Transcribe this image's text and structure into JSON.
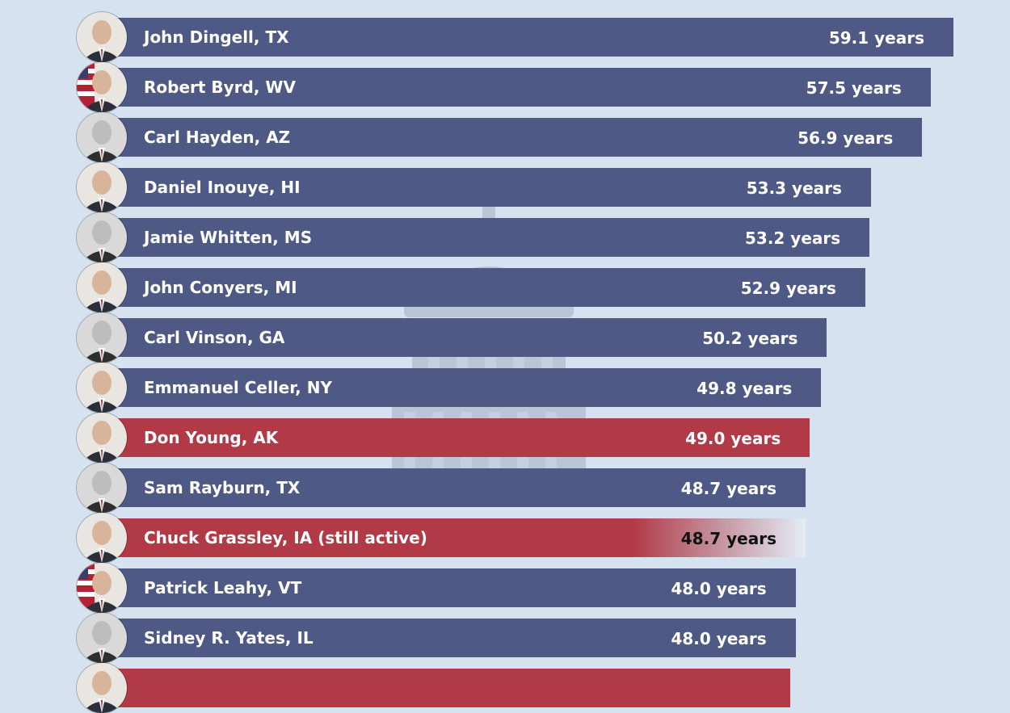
{
  "chart_data": {
    "type": "bar",
    "orientation": "horizontal",
    "unit": "years",
    "xlim": [
      0,
      60
    ],
    "grid": false,
    "legend": "none",
    "colors": {
      "democrat": "#4f5986",
      "republican": "#b23a47",
      "background": "#d6e2ef"
    },
    "bars": [
      {
        "label": "John Dingell, TX",
        "value": 59.1,
        "value_label": "59.1 years",
        "party": "D",
        "portrait": "portrait-color"
      },
      {
        "label": "Robert Byrd, WV",
        "value": 57.5,
        "value_label": "57.5 years",
        "party": "D",
        "portrait": "portrait-flag"
      },
      {
        "label": "Carl Hayden, AZ",
        "value": 56.9,
        "value_label": "56.9 years",
        "party": "D",
        "portrait": "portrait-bw"
      },
      {
        "label": "Daniel Inouye, HI",
        "value": 53.3,
        "value_label": "53.3 years",
        "party": "D",
        "portrait": "portrait-color"
      },
      {
        "label": "Jamie Whitten, MS",
        "value": 53.2,
        "value_label": "53.2 years",
        "party": "D",
        "portrait": "portrait-bw"
      },
      {
        "label": "John Conyers, MI",
        "value": 52.9,
        "value_label": "52.9 years",
        "party": "D",
        "portrait": "portrait-color"
      },
      {
        "label": "Carl Vinson, GA",
        "value": 50.2,
        "value_label": "50.2 years",
        "party": "D",
        "portrait": "portrait-bw"
      },
      {
        "label": "Emmanuel Celler, NY",
        "value": 49.8,
        "value_label": "49.8 years",
        "party": "D",
        "portrait": "portrait-color"
      },
      {
        "label": "Don Young, AK",
        "value": 49.0,
        "value_label": "49.0 years",
        "party": "R",
        "portrait": "portrait-color"
      },
      {
        "label": "Sam Rayburn, TX",
        "value": 48.7,
        "value_label": "48.7 years",
        "party": "D",
        "portrait": "portrait-bw"
      },
      {
        "label": "Chuck Grassley, IA (still active)",
        "value": 48.7,
        "value_label": "48.7 years",
        "party": "R",
        "active": true,
        "portrait": "portrait-color"
      },
      {
        "label": "Patrick Leahy, VT",
        "value": 48.0,
        "value_label": "48.0 years",
        "party": "D",
        "portrait": "portrait-flag"
      },
      {
        "label": "Sidney R. Yates, IL",
        "value": 48.0,
        "value_label": "48.0 years",
        "party": "D",
        "portrait": "portrait-bw"
      },
      {
        "label": "",
        "value": 47.6,
        "value_label": "",
        "party": "R",
        "portrait": "portrait-color"
      }
    ]
  }
}
